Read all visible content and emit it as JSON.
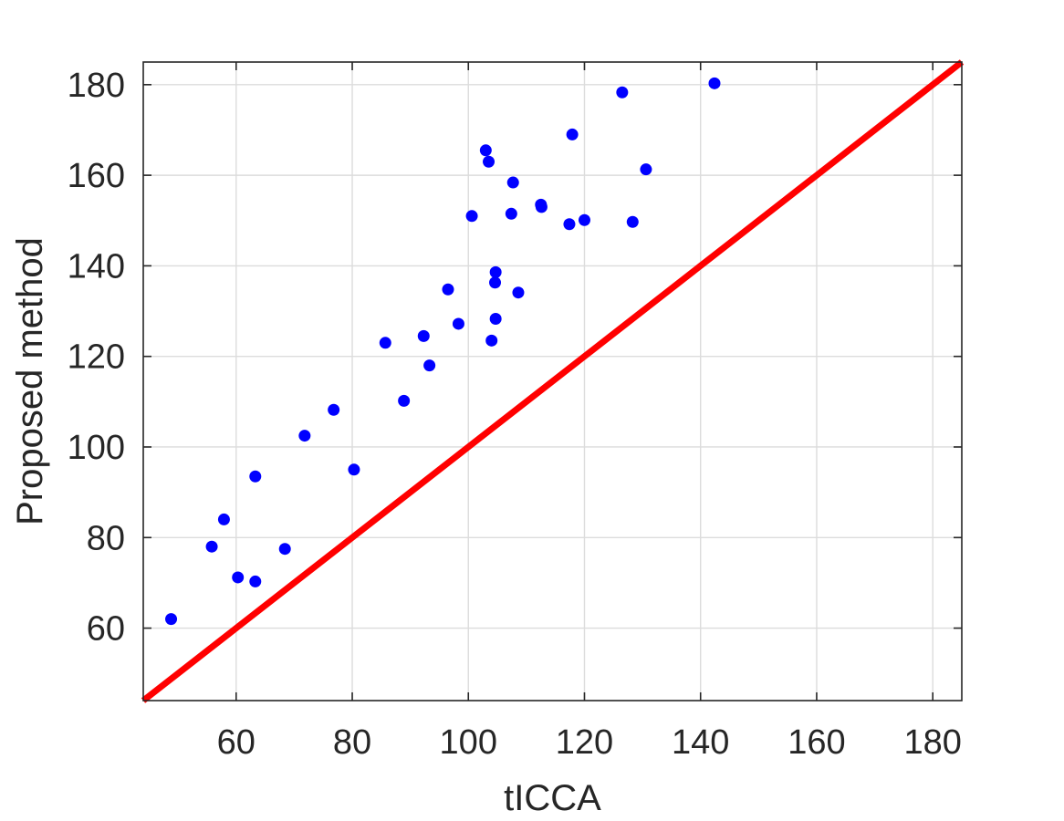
{
  "chart_data": {
    "type": "scatter",
    "title": "",
    "xlabel": "tICCA",
    "ylabel": "Proposed method",
    "xlim": [
      44,
      185
    ],
    "ylim": [
      44,
      185
    ],
    "xticks": [
      60,
      80,
      100,
      120,
      140,
      160,
      180
    ],
    "yticks": [
      60,
      80,
      100,
      120,
      140,
      160,
      180
    ],
    "grid": true,
    "colors": {
      "points": "#0000ff",
      "reference_line": "#ff0000",
      "axes": "#262626",
      "grid": "#dcdcdc"
    },
    "reference_line": {
      "x": [
        44,
        185
      ],
      "y": [
        44,
        185
      ]
    },
    "series": [
      {
        "x": [
          48.8,
          55.8,
          57.9,
          60.3,
          63.3,
          63.3,
          68.4,
          71.8,
          76.8,
          80.3,
          85.7,
          88.9,
          92.3,
          93.3,
          96.5,
          98.3,
          100.6,
          103.0,
          103.5,
          104.0,
          104.6,
          104.7,
          104.7,
          107.4,
          107.7,
          108.6,
          112.5,
          112.6,
          117.4,
          117.9,
          120.0,
          126.5,
          128.3,
          130.6,
          142.4
        ],
        "y": [
          62.0,
          78.0,
          84.0,
          71.2,
          93.5,
          70.3,
          77.5,
          102.5,
          108.2,
          95.0,
          123.0,
          110.2,
          124.5,
          118.0,
          134.8,
          127.2,
          151.0,
          165.5,
          163.0,
          123.5,
          136.3,
          138.6,
          128.3,
          151.5,
          158.4,
          134.1,
          153.5,
          153.0,
          149.2,
          169.0,
          150.1,
          178.3,
          149.7,
          161.3,
          180.3
        ]
      }
    ]
  }
}
